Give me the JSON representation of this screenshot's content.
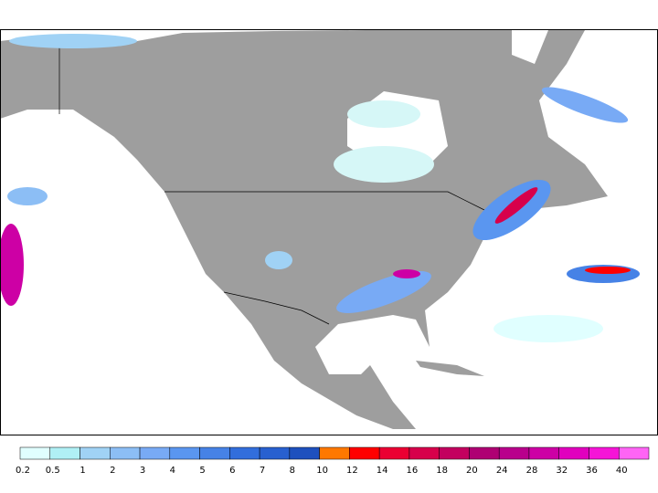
{
  "colorbar": {
    "levels": [
      0.2,
      0.5,
      1,
      2,
      3,
      4,
      5,
      6,
      7,
      8,
      10,
      12,
      14,
      16,
      18,
      20,
      24,
      28,
      32,
      36,
      40
    ],
    "colors": [
      "#e0ffff",
      "#b0f0f5",
      "#a0d2f5",
      "#8cbef5",
      "#78aaf5",
      "#5a96f0",
      "#4682e6",
      "#326edc",
      "#2860d0",
      "#1e50be",
      "#ff7800",
      "#ff0000",
      "#eb0032",
      "#d7004b",
      "#c3005f",
      "#af0073",
      "#b9008c",
      "#cd00a5",
      "#e100be",
      "#f514d7",
      "#ff64f5"
    ]
  }
}
